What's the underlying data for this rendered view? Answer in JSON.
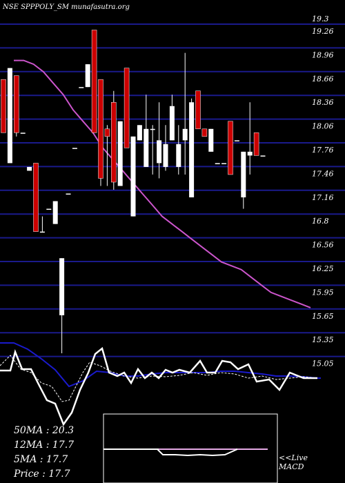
{
  "title": "NSE SPPPOLY_SM munafasutra.org",
  "colors": {
    "background": "#000000",
    "grid": "#1a1a8c",
    "up_candle": "#ffffff",
    "down_candle": "#cc0000",
    "ma_line": "#cc55cc",
    "macd_blue": "#1a1acc"
  },
  "chart_data": {
    "type": "candlestick",
    "title": "NSE SPPPOLY_SM munafasutra.org",
    "y_ticks": [
      "19.3",
      "19.26",
      "18.96",
      "18.66",
      "18.36",
      "18.06",
      "17.76",
      "17.46",
      "17.16",
      "16.8",
      "16.56",
      "16.25",
      "15.95",
      "15.65",
      "15.35",
      "15.05"
    ],
    "ylim": [
      15.0,
      19.3
    ],
    "grid": true,
    "candles": [
      {
        "o": 18.6,
        "h": 18.6,
        "l": 17.9,
        "c": 17.9,
        "dir": "down"
      },
      {
        "o": 17.5,
        "h": 18.75,
        "l": 17.5,
        "c": 18.75,
        "dir": "up"
      },
      {
        "o": 18.65,
        "h": 18.65,
        "l": 17.85,
        "c": 17.9,
        "dir": "down"
      },
      {
        "o": 17.9,
        "h": 17.9,
        "l": 17.9,
        "c": 17.9,
        "dir": "flat"
      },
      {
        "o": 17.4,
        "h": 17.45,
        "l": 17.4,
        "c": 17.45,
        "dir": "up"
      },
      {
        "o": 17.5,
        "h": 17.5,
        "l": 16.6,
        "c": 16.6,
        "dir": "down"
      },
      {
        "o": 16.6,
        "h": 16.8,
        "l": 16.6,
        "c": 16.6,
        "dir": "flat"
      },
      {
        "o": 16.9,
        "h": 16.9,
        "l": 16.9,
        "c": 16.9,
        "dir": "flat"
      },
      {
        "o": 16.7,
        "h": 17.0,
        "l": 16.7,
        "c": 17.0,
        "dir": "up"
      },
      {
        "o": 15.5,
        "h": 16.25,
        "l": 15.0,
        "c": 16.25,
        "dir": "up"
      },
      {
        "o": 17.1,
        "h": 17.1,
        "l": 17.1,
        "c": 17.1,
        "dir": "flat"
      },
      {
        "o": 17.7,
        "h": 17.7,
        "l": 17.7,
        "c": 17.7,
        "dir": "flat"
      },
      {
        "o": 18.5,
        "h": 18.5,
        "l": 18.5,
        "c": 18.5,
        "dir": "flat"
      },
      {
        "o": 18.5,
        "h": 18.8,
        "l": 18.5,
        "c": 18.8,
        "dir": "up"
      },
      {
        "o": 19.25,
        "h": 19.25,
        "l": 17.9,
        "c": 17.9,
        "dir": "down"
      },
      {
        "o": 18.6,
        "h": 18.6,
        "l": 17.2,
        "c": 17.3,
        "dir": "down"
      },
      {
        "o": 17.95,
        "h": 18.0,
        "l": 17.2,
        "c": 17.85,
        "dir": "down"
      },
      {
        "o": 18.3,
        "h": 18.45,
        "l": 17.15,
        "c": 17.25,
        "dir": "down"
      },
      {
        "o": 17.2,
        "h": 18.05,
        "l": 17.2,
        "c": 18.05,
        "dir": "up"
      },
      {
        "o": 18.75,
        "h": 18.75,
        "l": 17.7,
        "c": 17.7,
        "dir": "down"
      },
      {
        "o": 16.8,
        "h": 17.85,
        "l": 16.8,
        "c": 17.85,
        "dir": "up"
      },
      {
        "o": 17.8,
        "h": 18.0,
        "l": 17.8,
        "c": 18.0,
        "dir": "up"
      },
      {
        "o": 17.45,
        "h": 18.4,
        "l": 17.45,
        "c": 17.95,
        "dir": "up"
      },
      {
        "o": 17.95,
        "h": 18.0,
        "l": 17.35,
        "c": 17.95,
        "dir": "up"
      },
      {
        "o": 17.8,
        "h": 18.3,
        "l": 17.3,
        "c": 17.5,
        "dir": "up"
      },
      {
        "o": 17.45,
        "h": 18.0,
        "l": 17.4,
        "c": 17.75,
        "dir": "up"
      },
      {
        "o": 18.25,
        "h": 18.4,
        "l": 17.8,
        "c": 17.8,
        "dir": "up"
      },
      {
        "o": 17.45,
        "h": 18.0,
        "l": 17.35,
        "c": 17.75,
        "dir": "up"
      },
      {
        "o": 17.8,
        "h": 18.95,
        "l": 17.35,
        "c": 17.95,
        "dir": "up"
      },
      {
        "o": 17.05,
        "h": 18.35,
        "l": 17.05,
        "c": 18.3,
        "dir": "up"
      },
      {
        "o": 18.45,
        "h": 18.45,
        "l": 17.95,
        "c": 17.95,
        "dir": "down"
      },
      {
        "o": 17.85,
        "h": 17.95,
        "l": 17.85,
        "c": 17.95,
        "dir": "down"
      },
      {
        "o": 17.65,
        "h": 17.95,
        "l": 17.65,
        "c": 17.95,
        "dir": "up"
      },
      {
        "o": 17.5,
        "h": 17.5,
        "l": 17.5,
        "c": 17.5,
        "dir": "flat"
      },
      {
        "o": 17.5,
        "h": 17.5,
        "l": 17.5,
        "c": 17.5,
        "dir": "flat"
      },
      {
        "o": 18.05,
        "h": 18.05,
        "l": 17.35,
        "c": 17.35,
        "dir": "down"
      },
      {
        "o": 17.8,
        "h": 17.8,
        "l": 17.8,
        "c": 17.8,
        "dir": "flat"
      },
      {
        "o": 17.05,
        "h": 17.65,
        "l": 16.9,
        "c": 17.65,
        "dir": "up"
      },
      {
        "o": 17.6,
        "h": 18.3,
        "l": 17.35,
        "c": 17.65,
        "dir": "up"
      },
      {
        "o": 17.9,
        "h": 17.9,
        "l": 17.6,
        "c": 17.6,
        "dir": "down"
      },
      {
        "o": 17.6,
        "h": 17.6,
        "l": 17.6,
        "c": 17.6,
        "dir": "flat"
      }
    ],
    "ma_line": [
      18.85,
      18.85,
      18.8,
      18.7,
      18.55,
      18.4,
      18.2,
      18.05,
      17.9,
      17.7,
      17.55,
      17.4,
      17.25,
      17.1,
      16.95,
      16.8,
      16.7,
      16.6,
      16.5,
      16.4,
      16.3,
      16.2,
      16.15,
      16.1,
      16.0,
      15.9,
      15.8,
      15.75,
      15.7,
      15.65,
      15.6
    ],
    "macd": {
      "label": "<<Live MACD"
    }
  },
  "indicators": {
    "ma50": "50MA : 20.3",
    "ma12": "12MA : 17.7",
    "ma5": "5MA : 17.7",
    "price": "Price   : 17.7"
  }
}
